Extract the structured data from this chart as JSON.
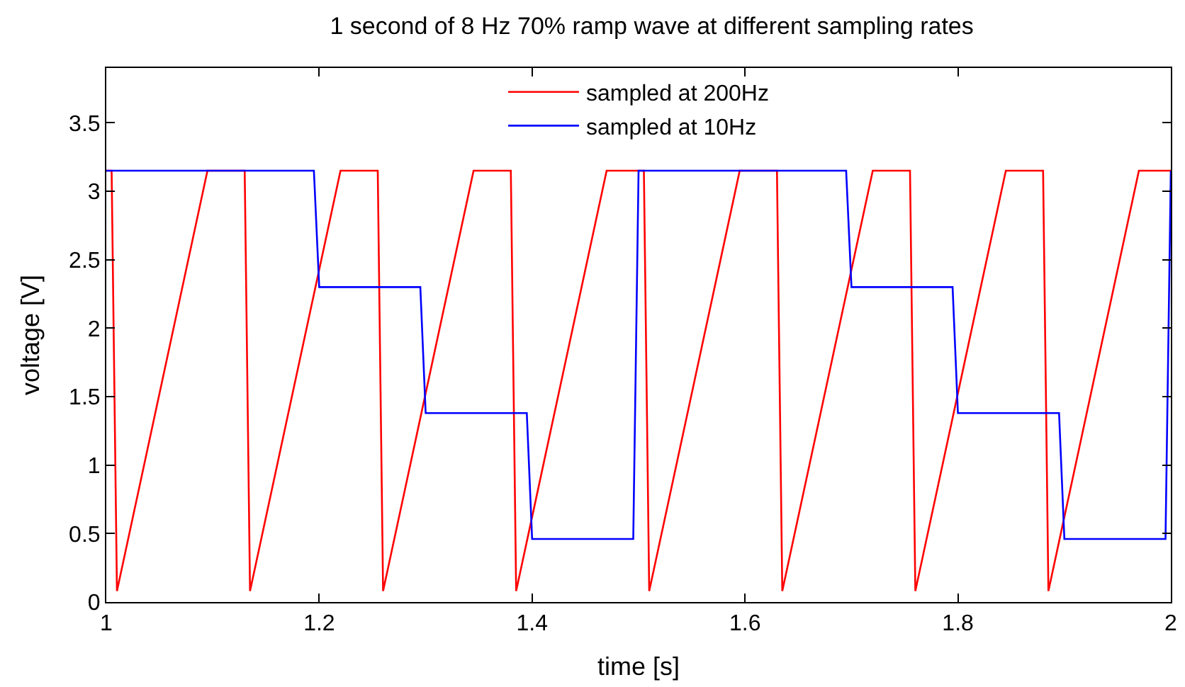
{
  "chart_data": {
    "type": "line",
    "title": "1 second of 8 Hz 70% ramp wave at different sampling rates",
    "xlabel": "time [s]",
    "ylabel": "voltage [V]",
    "xlim": [
      1,
      2
    ],
    "xticks": [
      1,
      1.2,
      1.4,
      1.6,
      1.8,
      2
    ],
    "ylim": [
      0,
      3.9
    ],
    "yticks": [
      0,
      0.5,
      1,
      1.5,
      2,
      2.5,
      3,
      3.5
    ],
    "legend": "top",
    "marker": "none",
    "line_style": "solid",
    "series": [
      {
        "name": "sampled at 200Hz",
        "color": "#ff0000",
        "x": [
          1.0,
          1.005,
          1.01,
          1.095,
          1.13,
          1.135,
          1.22,
          1.255,
          1.26,
          1.345,
          1.38,
          1.385,
          1.47,
          1.505,
          1.51,
          1.595,
          1.63,
          1.635,
          1.72,
          1.755,
          1.76,
          1.845,
          1.88,
          1.885,
          1.97,
          2.0
        ],
        "values": [
          3.15,
          3.15,
          0.08,
          3.15,
          3.15,
          0.08,
          3.15,
          3.15,
          0.08,
          3.15,
          3.15,
          0.08,
          3.15,
          3.15,
          0.08,
          3.15,
          3.15,
          0.08,
          3.15,
          3.15,
          0.08,
          3.15,
          3.15,
          0.08,
          3.15,
          3.15
        ]
      },
      {
        "name": "sampled at 10Hz",
        "color": "#0000ff",
        "x": [
          1.0,
          1.195,
          1.2,
          1.295,
          1.3,
          1.395,
          1.4,
          1.495,
          1.5,
          1.695,
          1.7,
          1.795,
          1.8,
          1.895,
          1.9,
          1.995,
          2.0
        ],
        "values": [
          3.15,
          3.15,
          2.3,
          2.3,
          1.38,
          1.38,
          0.46,
          0.46,
          3.15,
          3.15,
          2.3,
          2.3,
          1.38,
          1.38,
          0.46,
          0.46,
          3.15
        ]
      }
    ]
  }
}
